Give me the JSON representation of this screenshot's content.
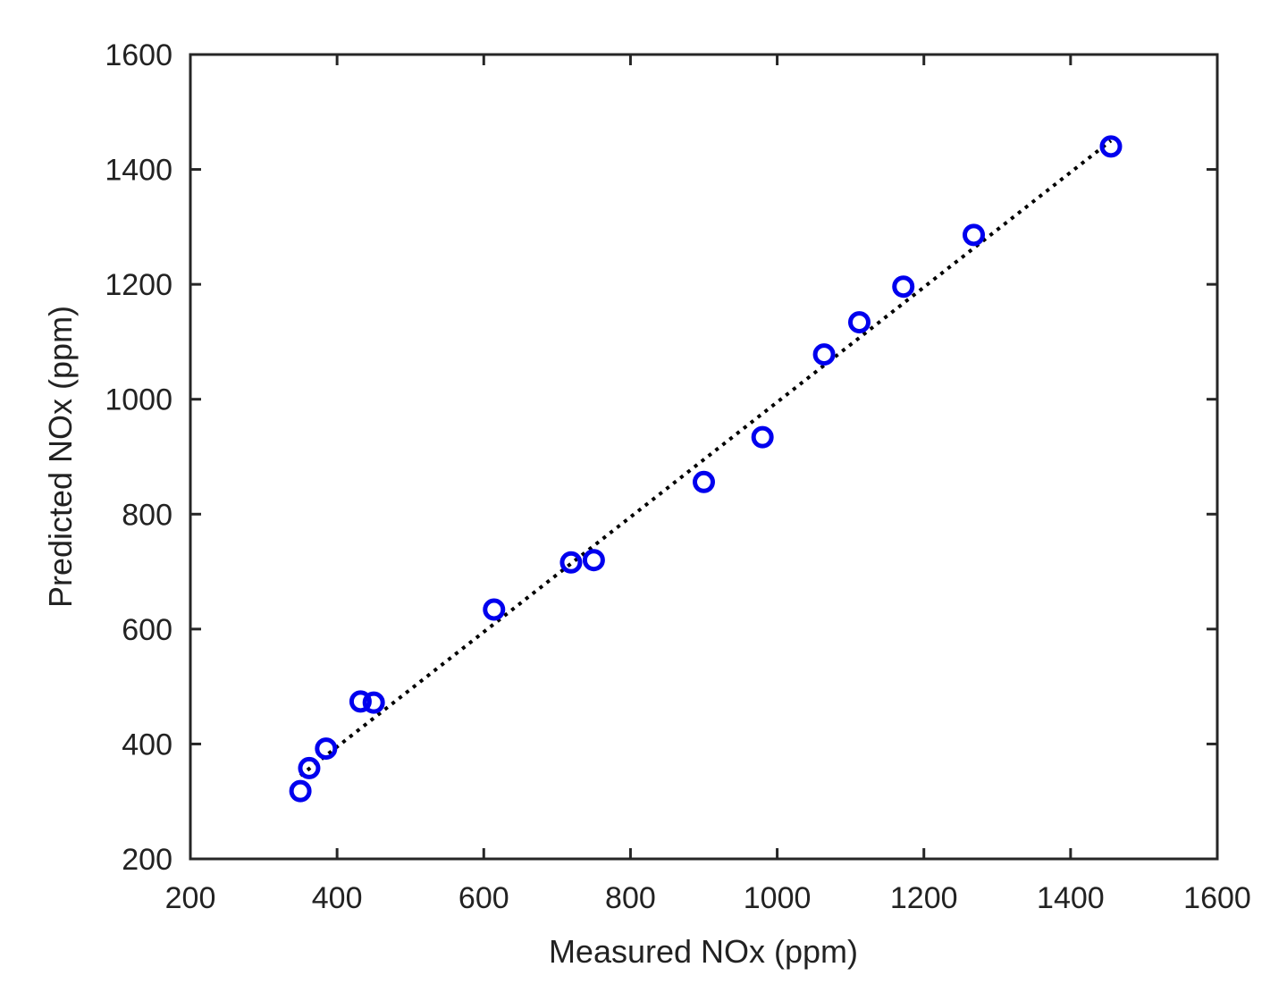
{
  "chart_data": {
    "type": "scatter",
    "xlabel": "Measured NOx (ppm)",
    "ylabel": "Predicted NOx (ppm)",
    "xlim": [
      200,
      1600
    ],
    "ylim": [
      200,
      1600
    ],
    "xticks": [
      200,
      400,
      600,
      800,
      1000,
      1200,
      1400,
      1600
    ],
    "yticks": [
      200,
      400,
      600,
      800,
      1000,
      1200,
      1400,
      1600
    ],
    "xtick_labels": [
      "200",
      "400",
      "600",
      "800",
      "1000",
      "1200",
      "1400",
      "1600"
    ],
    "ytick_labels": [
      "200",
      "400",
      "600",
      "800",
      "1000",
      "1200",
      "1400",
      "1600"
    ],
    "grid": false,
    "box": true,
    "series": [
      {
        "style": "markers",
        "marker": "open-circle",
        "color": "#0000ee",
        "x": [
          350,
          362,
          385,
          432,
          450,
          614,
          719,
          750,
          900,
          980,
          1064,
          1112,
          1172,
          1268,
          1455
        ],
        "y": [
          318,
          358,
          392,
          474,
          472,
          634,
          716,
          720,
          856,
          934,
          1078,
          1134,
          1196,
          1286,
          1440
        ]
      },
      {
        "style": "dotted-line",
        "color": "#000000",
        "x": [
          350,
          1455
        ],
        "y": [
          345,
          1450
        ]
      }
    ]
  }
}
